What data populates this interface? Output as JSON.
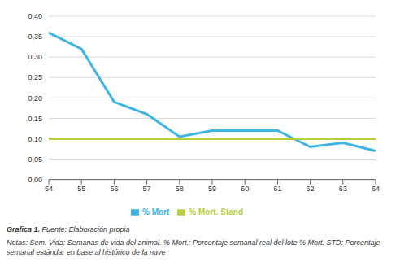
{
  "chart_data": {
    "type": "line",
    "categories": [
      "54",
      "55",
      "56",
      "57",
      "58",
      "59",
      "60",
      "61",
      "62",
      "63",
      "64"
    ],
    "series": [
      {
        "name": "% Mort",
        "color": "#3db4e6",
        "values": [
          0.36,
          0.32,
          0.19,
          0.16,
          0.105,
          0.12,
          0.12,
          0.12,
          0.08,
          0.09,
          0.07
        ]
      },
      {
        "name": "% Mort. Stand",
        "color": "#b4cf3e",
        "values": [
          0.1,
          0.1,
          0.1,
          0.1,
          0.1,
          0.1,
          0.1,
          0.1,
          0.1,
          0.1,
          0.1
        ]
      }
    ],
    "ylim": [
      0,
      0.4
    ],
    "yticks": [
      {
        "value": 0,
        "label": "0,00"
      },
      {
        "value": 0.05,
        "label": "0,05"
      },
      {
        "value": 0.1,
        "label": "0,10"
      },
      {
        "value": 0.15,
        "label": "0,15"
      },
      {
        "value": 0.2,
        "label": "0,20"
      },
      {
        "value": 0.25,
        "label": "0,25"
      },
      {
        "value": 0.3,
        "label": "0,30"
      },
      {
        "value": 0.35,
        "label": "0,35"
      },
      {
        "value": 0.4,
        "label": "0,40"
      }
    ],
    "grid": true,
    "legend": "bottom",
    "caption": {
      "label": "Grafica 1.",
      "text": "Fuente: Elaboración propia"
    },
    "notes": "Notas: Sem. Vida: Semanas de vida del animal. % Mort.: Porcentaje semanal real del lote % Mort. STD: Porcentaje semanal estándar en base al histórico de la nave"
  }
}
